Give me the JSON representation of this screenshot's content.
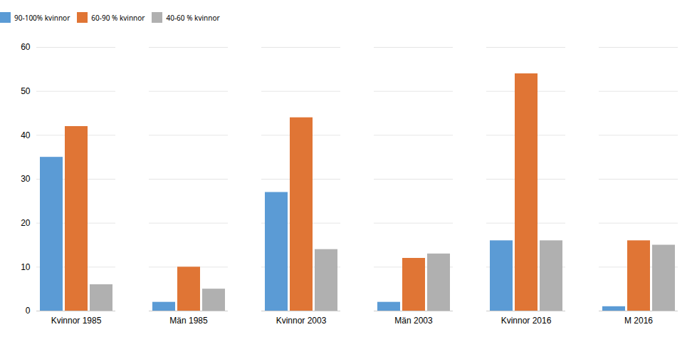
{
  "chart_data": {
    "type": "bar",
    "categories": [
      "Kvinnor 1985",
      "Män 1985",
      "Kvinnor 2003",
      "Män 2003",
      "Kvinnor 2016",
      "M 2016"
    ],
    "series": [
      {
        "name": "90-100% kvinnor",
        "color": "#5b9bd5",
        "values": [
          35,
          2,
          27,
          2,
          16,
          1
        ]
      },
      {
        "name": "60-90 % kvinnor",
        "color": "#e07535",
        "values": [
          42,
          10,
          44,
          12,
          54,
          16
        ]
      },
      {
        "name": "40-60 % kvinnor",
        "color": "#b0b0b0",
        "values": [
          6,
          5,
          14,
          13,
          16,
          15
        ]
      }
    ],
    "ylim": [
      0,
      60
    ],
    "yticks": [
      0,
      10,
      20,
      30,
      40,
      50,
      60
    ],
    "grid": true,
    "legend": "top"
  }
}
